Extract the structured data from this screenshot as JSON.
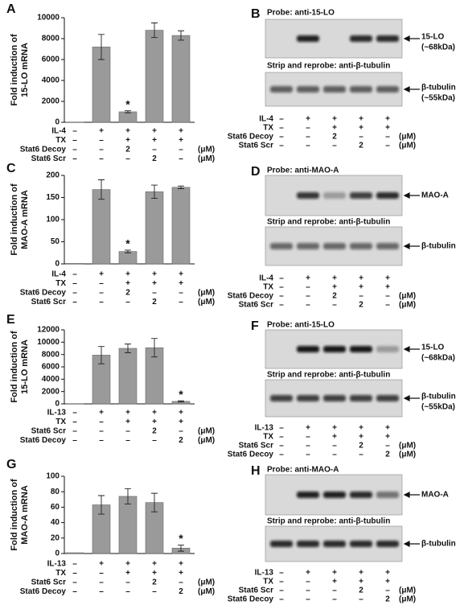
{
  "chart_data": [
    {
      "type": "bar",
      "panel": "A",
      "ylabel": [
        "Fold induction of",
        "15-LO mRNA"
      ],
      "categories": [
        null,
        null,
        null,
        null,
        null
      ],
      "values": [
        1,
        7200,
        1000,
        8800,
        8300
      ],
      "errors": [
        0,
        1200,
        100,
        700,
        450
      ],
      "significance": [
        null,
        null,
        "*",
        null,
        null
      ],
      "color": "#9a9a9a",
      "ylim": [
        0,
        10000
      ],
      "yticks": [
        0,
        2000,
        4000,
        6000,
        8000,
        10000
      ],
      "conditions": [
        {
          "name": "IL-4",
          "cells": [
            "–",
            "+",
            "+",
            "+",
            "+"
          ]
        },
        {
          "name": "TX",
          "cells": [
            "–",
            "–",
            "+",
            "+",
            "+"
          ]
        },
        {
          "name": "Stat6 Decoy",
          "cells": [
            "–",
            "–",
            "2",
            "–",
            "–"
          ],
          "unit": "(μM)"
        },
        {
          "name": "Stat6 Scr",
          "cells": [
            "–",
            "–",
            "–",
            "2",
            "–"
          ],
          "unit": "(μM)"
        }
      ]
    },
    {
      "type": "bar",
      "panel": "C",
      "ylabel": [
        "Fold induction of",
        "MAO-A mRNA"
      ],
      "categories": [
        null,
        null,
        null,
        null,
        null
      ],
      "values": [
        1,
        168,
        28,
        163,
        173
      ],
      "errors": [
        0,
        22,
        3,
        15,
        3
      ],
      "significance": [
        null,
        null,
        "*",
        null,
        null
      ],
      "color": "#9a9a9a",
      "ylim": [
        0,
        200
      ],
      "yticks": [
        0,
        50,
        100,
        150,
        200
      ],
      "conditions": [
        {
          "name": "IL-4",
          "cells": [
            "–",
            "+",
            "+",
            "+",
            "+"
          ]
        },
        {
          "name": "TX",
          "cells": [
            "–",
            "–",
            "+",
            "+",
            "+"
          ]
        },
        {
          "name": "Stat6 Decoy",
          "cells": [
            "–",
            "–",
            "2",
            "–",
            "–"
          ],
          "unit": "(μM)"
        },
        {
          "name": "Stat6 Scr",
          "cells": [
            "–",
            "–",
            "–",
            "2",
            "–"
          ],
          "unit": "(μM)"
        }
      ]
    },
    {
      "type": "bar",
      "panel": "E",
      "ylabel": [
        "Fold induction of",
        "15-LO mRNA"
      ],
      "categories": [
        null,
        null,
        null,
        null,
        null
      ],
      "values": [
        1,
        7900,
        9000,
        9100,
        400
      ],
      "errors": [
        0,
        1400,
        700,
        1500,
        100
      ],
      "significance": [
        null,
        null,
        null,
        null,
        "*"
      ],
      "color": "#9a9a9a",
      "ylim": [
        0,
        12000
      ],
      "yticks": [
        0,
        2000,
        4000,
        6000,
        8000,
        10000,
        12000
      ],
      "conditions": [
        {
          "name": "IL-13",
          "cells": [
            "–",
            "+",
            "+",
            "+",
            "+"
          ]
        },
        {
          "name": "TX",
          "cells": [
            "–",
            "–",
            "+",
            "+",
            "+"
          ]
        },
        {
          "name": "Stat6 Scr",
          "cells": [
            "–",
            "–",
            "–",
            "2",
            "–"
          ],
          "unit": "(μM)"
        },
        {
          "name": "Stat6 Decoy",
          "cells": [
            "–",
            "–",
            "–",
            "–",
            "2"
          ],
          "unit": "(μM)"
        }
      ]
    },
    {
      "type": "bar",
      "panel": "G",
      "ylabel": [
        "Fold induction of",
        "MAO-A mRNA"
      ],
      "categories": [
        null,
        null,
        null,
        null,
        null
      ],
      "values": [
        1,
        63,
        74,
        66,
        7
      ],
      "errors": [
        0,
        12,
        10,
        12,
        4
      ],
      "significance": [
        null,
        null,
        null,
        null,
        "*"
      ],
      "color": "#9a9a9a",
      "ylim": [
        0,
        100
      ],
      "yticks": [
        0,
        20,
        40,
        60,
        80,
        100
      ],
      "conditions": [
        {
          "name": "IL-13",
          "cells": [
            "–",
            "+",
            "+",
            "+",
            "+"
          ]
        },
        {
          "name": "TX",
          "cells": [
            "–",
            "–",
            "+",
            "+",
            "+"
          ]
        },
        {
          "name": "Stat6 Scr",
          "cells": [
            "–",
            "–",
            "–",
            "2",
            "–"
          ],
          "unit": "(μM)"
        },
        {
          "name": "Stat6 Decoy",
          "cells": [
            "–",
            "–",
            "–",
            "–",
            "2"
          ],
          "unit": "(μM)"
        }
      ]
    }
  ],
  "blots": [
    {
      "panel": "B",
      "probe": "Probe: anti-15-LO",
      "bands": [
        "15-LO",
        "(~68kDa)"
      ],
      "reprobe": "Strip and reprobe: anti-β-tubulin",
      "reprobe_bands": [
        "β-tubulin",
        "(~55kDa)"
      ],
      "conditions": [
        {
          "name": "IL-4",
          "cells": [
            "–",
            "+",
            "+",
            "+",
            "+"
          ]
        },
        {
          "name": "TX",
          "cells": [
            "–",
            "–",
            "+",
            "+",
            "+"
          ]
        },
        {
          "name": "Stat6 Decoy",
          "cells": [
            "–",
            "–",
            "2",
            "–",
            "–"
          ],
          "unit": "(μM)"
        },
        {
          "name": "Stat6 Scr",
          "cells": [
            "–",
            "–",
            "–",
            "2",
            "–"
          ],
          "unit": "(μM)"
        }
      ]
    },
    {
      "panel": "D",
      "probe": "Probe: anti-MAO-A",
      "bands": [
        "MAO-A"
      ],
      "reprobe": "Strip and reprobe: anti-β-tubulin",
      "reprobe_bands": [
        "β-tubulin"
      ],
      "conditions": [
        {
          "name": "IL-4",
          "cells": [
            "–",
            "+",
            "+",
            "+",
            "+"
          ]
        },
        {
          "name": "TX",
          "cells": [
            "–",
            "–",
            "+",
            "+",
            "+"
          ]
        },
        {
          "name": "Stat6 Decoy",
          "cells": [
            "–",
            "–",
            "2",
            "–",
            "–"
          ],
          "unit": "(μM)"
        },
        {
          "name": "Stat6 Scr",
          "cells": [
            "–",
            "–",
            "–",
            "2",
            "–"
          ],
          "unit": "(μM)"
        }
      ]
    },
    {
      "panel": "F",
      "probe": "Probe: anti-15-LO",
      "bands": [
        "15-LO",
        "(~68kDa)"
      ],
      "reprobe": "Strip and reprobe: anti-β-tubulin",
      "reprobe_bands": [
        "β-tubulin",
        "(~55kDa)"
      ],
      "conditions": [
        {
          "name": "IL-13",
          "cells": [
            "–",
            "+",
            "+",
            "+",
            "+"
          ]
        },
        {
          "name": "TX",
          "cells": [
            "–",
            "–",
            "+",
            "+",
            "+"
          ]
        },
        {
          "name": "Stat6 Scr",
          "cells": [
            "–",
            "–",
            "–",
            "2",
            "–"
          ],
          "unit": "(μM)"
        },
        {
          "name": "Stat6 Decoy",
          "cells": [
            "–",
            "–",
            "–",
            "–",
            "2"
          ],
          "unit": "(μM)"
        }
      ]
    },
    {
      "panel": "H",
      "probe": "Probe: anti-MAO-A",
      "bands": [
        "MAO-A"
      ],
      "reprobe": "Strip and reprobe: anti-β-tubulin",
      "reprobe_bands": [
        "β-tubulin"
      ],
      "conditions": [
        {
          "name": "IL-13",
          "cells": [
            "–",
            "+",
            "+",
            "+",
            "+"
          ]
        },
        {
          "name": "TX",
          "cells": [
            "–",
            "–",
            "+",
            "+",
            "+"
          ]
        },
        {
          "name": "Stat6 Scr",
          "cells": [
            "–",
            "–",
            "–",
            "2",
            "–"
          ],
          "unit": "(μM)"
        },
        {
          "name": "Stat6 Decoy",
          "cells": [
            "–",
            "–",
            "–",
            "–",
            "2"
          ],
          "unit": "(μM)"
        }
      ]
    }
  ]
}
